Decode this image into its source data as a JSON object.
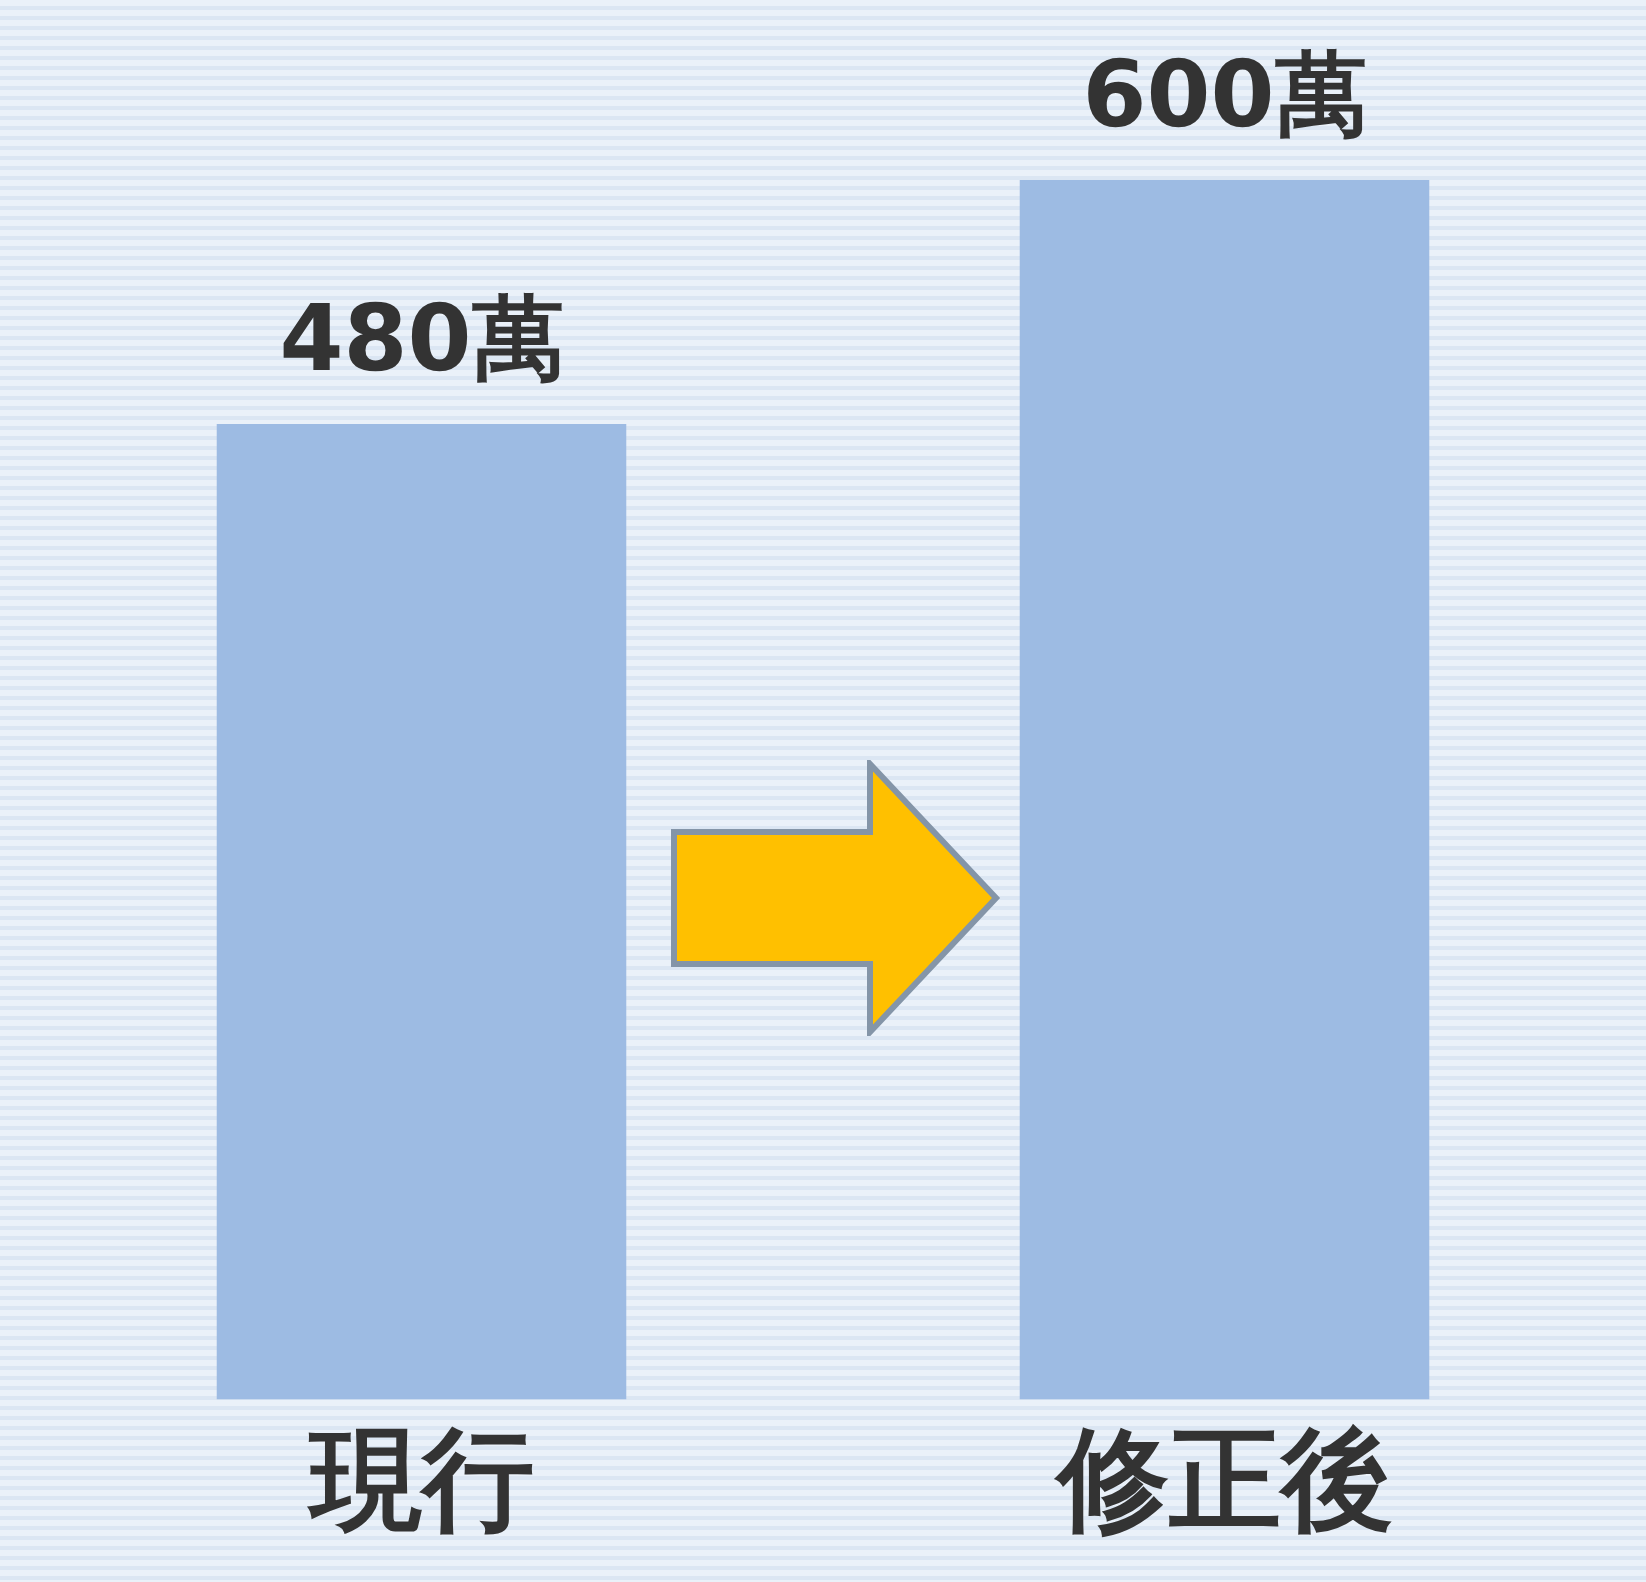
{
  "chart_data": {
    "type": "bar",
    "categories": [
      "現行",
      "修正後"
    ],
    "values": [
      480,
      600
    ],
    "value_labels": [
      "480萬",
      "600萬"
    ],
    "color": "#9dbbe3",
    "grid": false,
    "legend": false
  }
}
